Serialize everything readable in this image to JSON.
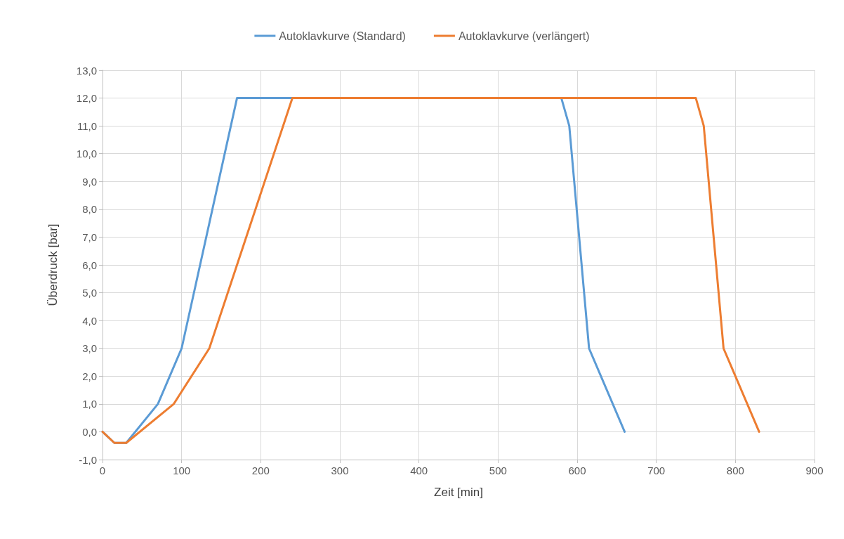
{
  "chart_data": {
    "type": "line",
    "xlabel": "Zeit [min]",
    "ylabel": "Überdruck [bar]",
    "legend": "top",
    "grid": true,
    "marker": "none",
    "line_style": "solid",
    "xlim": [
      0,
      900
    ],
    "xticks": [
      0,
      100,
      200,
      300,
      400,
      500,
      600,
      700,
      800,
      900
    ],
    "ylim": [
      -1,
      13
    ],
    "yticks": [
      {
        "value": -1,
        "label": "-1,0"
      },
      {
        "value": 0,
        "label": "0,0"
      },
      {
        "value": 1,
        "label": "1,0"
      },
      {
        "value": 2,
        "label": "2,0"
      },
      {
        "value": 3,
        "label": "3,0"
      },
      {
        "value": 4,
        "label": "4,0"
      },
      {
        "value": 5,
        "label": "5,0"
      },
      {
        "value": 6,
        "label": "6,0"
      },
      {
        "value": 7,
        "label": "7,0"
      },
      {
        "value": 8,
        "label": "8,0"
      },
      {
        "value": 9,
        "label": "9,0"
      },
      {
        "value": 10,
        "label": "10,0"
      },
      {
        "value": 11,
        "label": "11,0"
      },
      {
        "value": 12,
        "label": "12,0"
      },
      {
        "value": 13,
        "label": "13,0"
      }
    ],
    "series": [
      {
        "name": "Autoklavkurve (Standard)",
        "color": "#5b9bd5",
        "x": [
          0,
          15,
          30,
          70,
          100,
          170,
          240,
          580,
          590,
          615,
          660
        ],
        "values": [
          0,
          -0.4,
          -0.4,
          1,
          3,
          12,
          12,
          12,
          11,
          3,
          0
        ]
      },
      {
        "name": "Autoklavkurve (verlängert)",
        "color": "#ed7d31",
        "x": [
          0,
          15,
          30,
          90,
          135,
          240,
          750,
          760,
          785,
          830
        ],
        "values": [
          0,
          -0.4,
          -0.4,
          1,
          3,
          12,
          12,
          11,
          3,
          0
        ]
      }
    ]
  }
}
